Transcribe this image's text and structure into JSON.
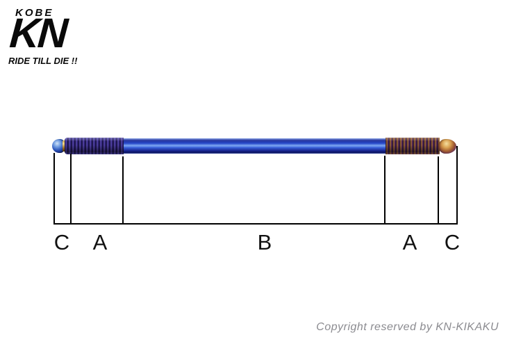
{
  "logo": {
    "city": "KOBE",
    "initials": "KN",
    "slogan": "RIDE TILL DIE !!"
  },
  "diagram": {
    "labels": [
      {
        "id": "c-left",
        "text": "C"
      },
      {
        "id": "a-left",
        "text": "A"
      },
      {
        "id": "b-center",
        "text": "B"
      },
      {
        "id": "a-right",
        "text": "A"
      },
      {
        "id": "c-right",
        "text": "C"
      }
    ]
  },
  "colors": {
    "rod_shaft_blue": "#2547c8",
    "rod_highlight_blue": "#7fa9f2",
    "left_thread_purple": "#241a66",
    "right_thread_bronze": "#a06a2e",
    "tip_burnt_gold": "#d8a050",
    "dimension_line_black": "#000000",
    "copyright_gray": "#8b8b90",
    "background_white": "#ffffff"
  },
  "footer": {
    "copyright": "Copyright reserved by KN-KIKAKU"
  }
}
